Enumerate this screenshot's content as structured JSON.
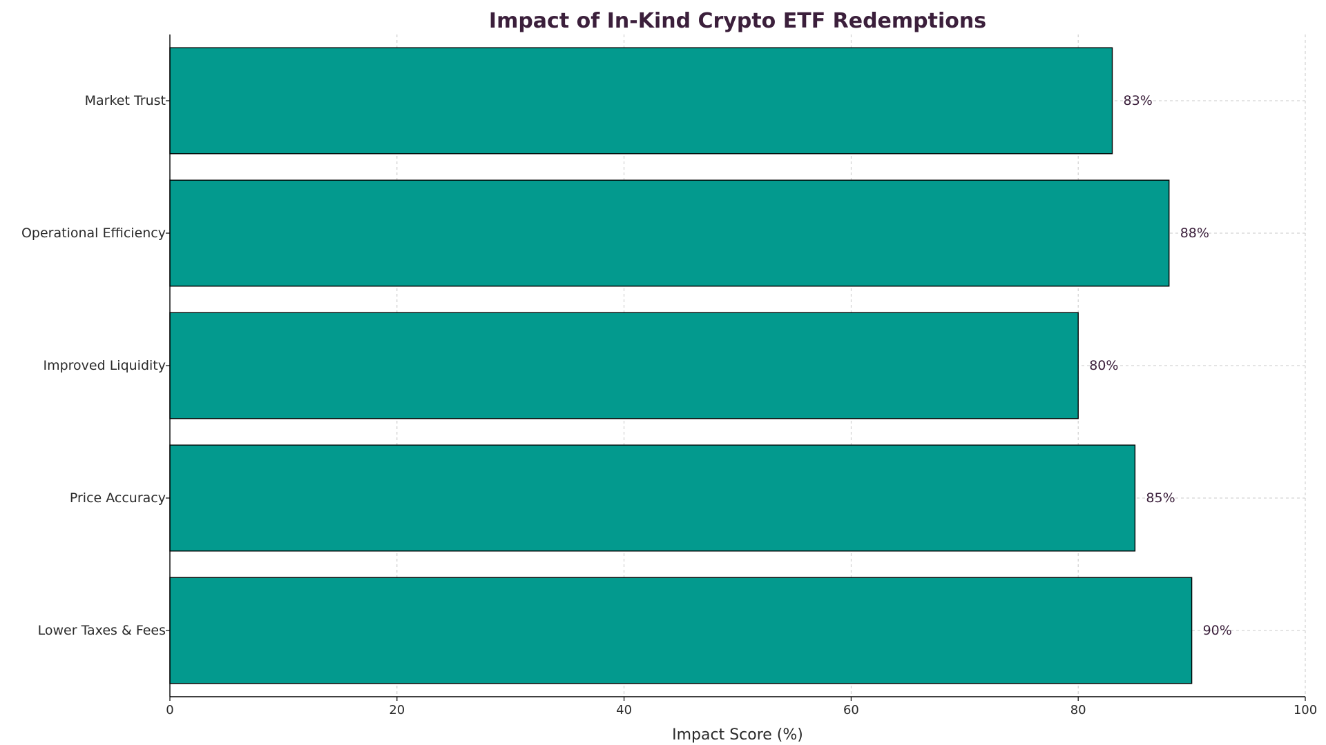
{
  "chart_data": {
    "type": "bar",
    "orientation": "horizontal",
    "title": "Impact of In-Kind Crypto ETF Redemptions",
    "xlabel": "Impact Score (%)",
    "ylabel": "",
    "xlim": [
      0,
      100
    ],
    "xticks": [
      0,
      20,
      40,
      60,
      80,
      100
    ],
    "grid": true,
    "categories": [
      "Lower Taxes & Fees",
      "Price Accuracy",
      "Improved Liquidity",
      "Operational Efficiency",
      "Market Trust"
    ],
    "values": [
      90,
      85,
      80,
      88,
      83
    ],
    "data_labels": [
      "90%",
      "85%",
      "80%",
      "88%",
      "83%"
    ],
    "colors": {
      "bar": "#039a8e",
      "title": "#3b1f3b",
      "data_label": "#3b1f3b"
    }
  }
}
